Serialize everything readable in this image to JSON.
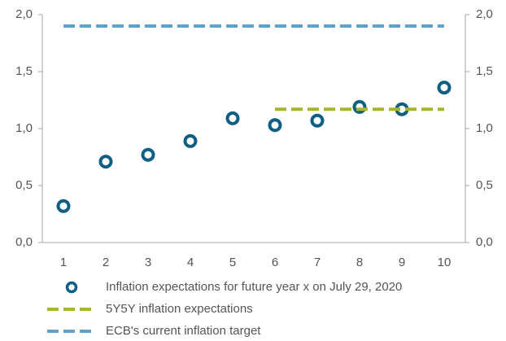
{
  "chart_data": {
    "type": "line",
    "categories": [
      "1",
      "2",
      "3",
      "4",
      "5",
      "6",
      "7",
      "8",
      "9",
      "10"
    ],
    "series": [
      {
        "name": "Inflation expectations for future year x on July 29, 2020",
        "type": "scatter",
        "color": "#0f5f84",
        "values": [
          0.32,
          0.71,
          0.77,
          0.89,
          1.09,
          1.03,
          1.07,
          1.19,
          1.17,
          1.36
        ]
      },
      {
        "name": "5Y5Y inflation expectations",
        "type": "line",
        "dashed": true,
        "color": "#a6b727",
        "values": [
          null,
          null,
          null,
          null,
          null,
          1.17,
          1.17,
          1.17,
          1.17,
          1.17
        ]
      },
      {
        "name": "ECB's current inflation target",
        "type": "line",
        "dashed": true,
        "color": "#5ba3c9",
        "values": [
          1.9,
          1.9,
          1.9,
          1.9,
          1.9,
          1.9,
          1.9,
          1.9,
          1.9,
          1.9
        ]
      }
    ],
    "ylim": [
      0,
      2
    ],
    "yticks": [
      {
        "value": 0,
        "label": "0,0"
      },
      {
        "value": 0.5,
        "label": "0,5"
      },
      {
        "value": 1,
        "label": "1,0"
      },
      {
        "value": 1.5,
        "label": "1,5"
      },
      {
        "value": 2,
        "label": "2,0"
      }
    ],
    "y2lim": [
      0,
      2
    ],
    "y2ticks": [
      {
        "value": 0,
        "label": "0,0"
      },
      {
        "value": 0.5,
        "label": "0,5"
      },
      {
        "value": 1,
        "label": "1,0"
      },
      {
        "value": 1.5,
        "label": "1,5"
      },
      {
        "value": 2,
        "label": "2,0"
      }
    ],
    "legend": "bottom"
  }
}
